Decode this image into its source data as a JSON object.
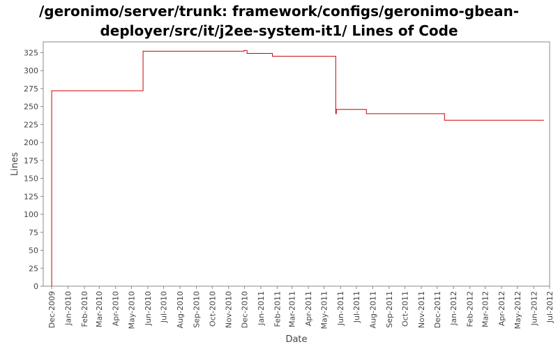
{
  "chart_data": {
    "type": "line",
    "title_line1": "/geronimo/server/trunk: framework/configs/geronimo-gbean-",
    "title_line2": "deployer/src/it/j2ee-system-it1/ Lines of Code",
    "xlabel": "Date",
    "ylabel": "Lines",
    "ylim": [
      0,
      340
    ],
    "yticks": [
      0,
      25,
      50,
      75,
      100,
      125,
      150,
      175,
      200,
      225,
      250,
      275,
      300,
      325
    ],
    "xlim": [
      "2009-11-15",
      "2012-07-01"
    ],
    "xticks": [
      "Dec-2009",
      "Jan-2010",
      "Feb-2010",
      "Mar-2010",
      "Apr-2010",
      "May-2010",
      "Jun-2010",
      "Jul-2010",
      "Aug-2010",
      "Sep-2010",
      "Oct-2010",
      "Nov-2010",
      "Dec-2010",
      "Jan-2011",
      "Feb-2011",
      "Mar-2011",
      "Apr-2011",
      "May-2011",
      "Jun-2011",
      "Jul-2011",
      "Aug-2011",
      "Sep-2011",
      "Oct-2011",
      "Nov-2011",
      "Dec-2011",
      "Jan-2012",
      "Feb-2012",
      "Mar-2012",
      "Apr-2012",
      "May-2012",
      "Jun-2012",
      "Jul-2012"
    ],
    "line_color": "#cc0000",
    "grid": false,
    "series": [
      {
        "values": [
          {
            "x": "2009-12-01",
            "y": 0
          },
          {
            "x": "2009-12-01",
            "y": 272
          },
          {
            "x": "2010-05-23",
            "y": 272
          },
          {
            "x": "2010-05-23",
            "y": 327
          },
          {
            "x": "2010-11-30",
            "y": 327
          },
          {
            "x": "2010-11-30",
            "y": 328
          },
          {
            "x": "2010-12-06",
            "y": 328
          },
          {
            "x": "2010-12-06",
            "y": 324
          },
          {
            "x": "2011-01-23",
            "y": 324
          },
          {
            "x": "2011-01-23",
            "y": 320
          },
          {
            "x": "2011-05-23",
            "y": 320
          },
          {
            "x": "2011-05-23",
            "y": 240
          },
          {
            "x": "2011-05-24",
            "y": 240
          },
          {
            "x": "2011-05-24",
            "y": 246
          },
          {
            "x": "2011-07-20",
            "y": 246
          },
          {
            "x": "2011-07-20",
            "y": 240
          },
          {
            "x": "2011-12-15",
            "y": 240
          },
          {
            "x": "2011-12-15",
            "y": 231
          },
          {
            "x": "2012-06-20",
            "y": 231
          }
        ]
      }
    ]
  }
}
